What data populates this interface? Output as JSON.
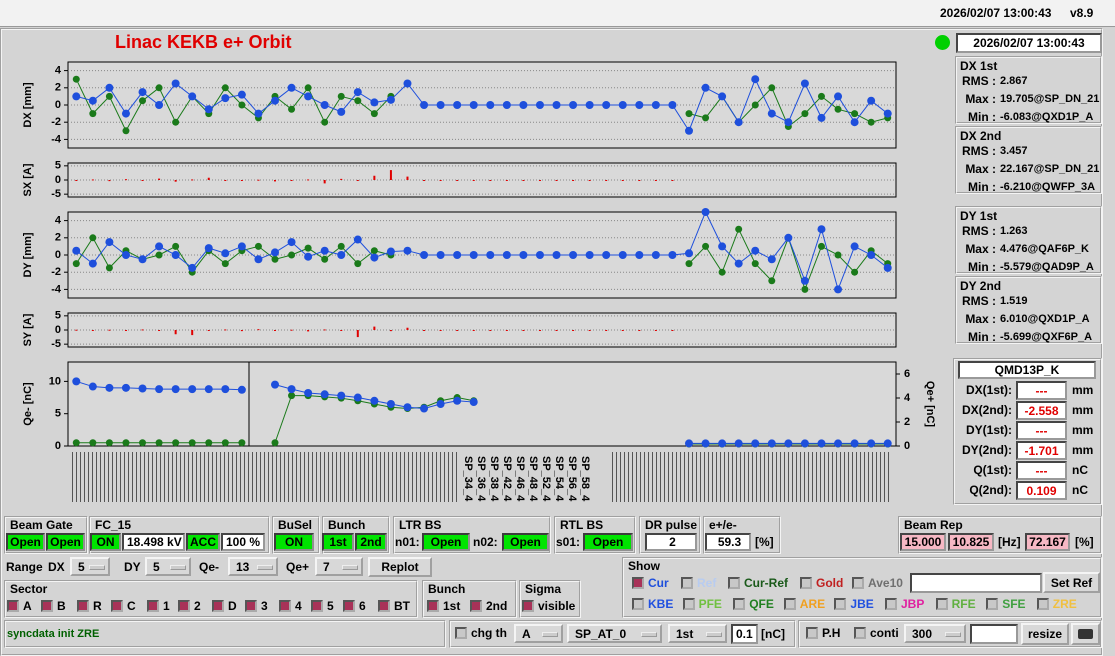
{
  "header": {
    "timestamp": "2026/02/07 13:00:43",
    "version": "v8.9"
  },
  "title": "Linac KEKB e+ Orbit",
  "clock": "2026/02/07 13:00:43",
  "plots": [
    {
      "type": "line",
      "ylabel": "DX [mm]",
      "ylim": [
        -5,
        5
      ],
      "yticks": [
        4,
        2,
        0,
        -2,
        -4
      ],
      "grid": true,
      "series": [
        {
          "color": "#1a7a1a",
          "values": [
            3,
            -1,
            1,
            -3,
            0.5,
            2,
            -2,
            1,
            -1,
            2,
            0,
            -1.5,
            1,
            -0.5,
            2,
            -2,
            1,
            0.5,
            -1,
            1,
            null,
            null,
            null,
            null,
            null,
            null,
            null,
            null,
            null,
            null,
            null,
            null,
            null,
            null,
            null,
            null,
            null,
            -1,
            -1.5,
            1,
            -2,
            0,
            2,
            -2.5,
            -1,
            1,
            -0.5,
            -1,
            -2,
            -1.5
          ]
        },
        {
          "color": "#1e4fdc",
          "values": [
            1,
            0.5,
            2,
            -1,
            1.5,
            0,
            2.5,
            1,
            -0.5,
            0.8,
            1.2,
            -1,
            0.5,
            2,
            1,
            0,
            -0.8,
            1.5,
            0.3,
            0.6,
            2.5,
            0,
            0,
            0,
            0,
            0,
            0,
            0,
            0,
            0,
            0,
            0,
            0,
            0,
            0,
            0,
            0,
            -3,
            2,
            1,
            -2,
            3,
            -1,
            -2,
            2.5,
            -1.5,
            1,
            -2,
            0.5,
            -1
          ]
        }
      ]
    },
    {
      "type": "bar",
      "ylabel": "SX [A]",
      "ylim": [
        -6,
        6
      ],
      "yticks": [
        5,
        0,
        -5
      ],
      "grid": true,
      "series": [
        {
          "color": "#e00000",
          "values": [
            -0.3,
            0.2,
            -0.4,
            0.3,
            -0.2,
            0.5,
            -0.6,
            0.2,
            0.8,
            -0.3,
            -0.2,
            0.1,
            -0.5,
            -0.3,
            0.2,
            -1.2,
            0.4,
            -0.3,
            1.5,
            3.5,
            1.2,
            0,
            0,
            0,
            0,
            0,
            0,
            0,
            0,
            0,
            0,
            0,
            0,
            0,
            0,
            0,
            0,
            null,
            null,
            null,
            null,
            null,
            null,
            null,
            null,
            null,
            null,
            null,
            null,
            null
          ]
        }
      ]
    },
    {
      "type": "line",
      "ylabel": "DY [mm]",
      "ylim": [
        -5,
        5
      ],
      "yticks": [
        4,
        2,
        0,
        -2,
        -4
      ],
      "grid": true,
      "series": [
        {
          "color": "#1a7a1a",
          "values": [
            -1,
            2,
            -1.5,
            0.5,
            -0.5,
            0,
            1,
            -2,
            0.5,
            -1,
            0.5,
            1,
            -0.5,
            0,
            0.8,
            -0.5,
            1,
            -1,
            0.5,
            0,
            null,
            null,
            null,
            null,
            null,
            null,
            null,
            null,
            null,
            null,
            null,
            null,
            null,
            null,
            null,
            null,
            null,
            -1,
            1,
            -2,
            3,
            -1,
            -3,
            2,
            -4,
            1,
            0,
            -2,
            0.5,
            -1
          ]
        },
        {
          "color": "#1e4fdc",
          "values": [
            0.5,
            -1,
            1.5,
            0,
            -0.5,
            1,
            0,
            -1.5,
            0.8,
            0.2,
            1,
            -0.5,
            0.3,
            1.5,
            -0.2,
            0.5,
            0,
            1.8,
            -0.3,
            0.4,
            0.5,
            0,
            0,
            0,
            0,
            0,
            0,
            0,
            0,
            0,
            0,
            0,
            0,
            0,
            0,
            0,
            0,
            0.2,
            5,
            1,
            -1,
            0.5,
            -0.5,
            2,
            -3,
            3,
            -4,
            1,
            0,
            -1.5
          ]
        }
      ]
    },
    {
      "type": "bar",
      "ylabel": "SY [A]",
      "ylim": [
        -6,
        6
      ],
      "yticks": [
        5,
        0,
        -5
      ],
      "grid": true,
      "series": [
        {
          "color": "#e00000",
          "values": [
            0.1,
            -0.2,
            0.1,
            -0.3,
            0.2,
            -0.1,
            -1.5,
            -1.8,
            -0.3,
            0.2,
            -0.4,
            0.3,
            -0.2,
            0.1,
            -0.5,
            0.2,
            -0.3,
            -2.5,
            1.2,
            -0.4,
            0.8,
            0,
            0,
            0,
            0,
            0,
            0,
            0,
            0,
            0,
            0,
            0,
            0,
            0,
            0,
            0,
            0,
            null,
            null,
            null,
            null,
            null,
            null,
            null,
            null,
            null,
            null,
            null,
            null,
            null
          ]
        }
      ]
    },
    {
      "type": "line",
      "ylabel": "Qe- [nC]",
      "ylim": [
        0,
        13
      ],
      "yticks": [
        10,
        5,
        0
      ],
      "y2label": "Qe+ [nC]",
      "y2lim": [
        0,
        7
      ],
      "y2ticks": [
        6,
        4,
        2,
        0
      ],
      "grid": false,
      "xlabels": [
        "SP_34_4",
        "SP_36_4",
        "SP_38_4",
        "SP_42_4",
        "SP_46_4",
        "SP_48_4",
        "SP_52_4",
        "SP_54_4",
        "SP_56_4",
        "SP_58_4"
      ],
      "series": [
        {
          "color": "#1a7a1a",
          "values": [
            0.5,
            0.5,
            0.5,
            0.5,
            0.5,
            0.5,
            0.5,
            0.5,
            0.5,
            0.5,
            0.5,
            null,
            0.5,
            7.8,
            7.8,
            7.6,
            7.4,
            7,
            6.5,
            6,
            5.8,
            6,
            7,
            7.5,
            7,
            null,
            null,
            null,
            null,
            null,
            null,
            null,
            null,
            null,
            null,
            null,
            null,
            0.3,
            0.3,
            0.3,
            0.3,
            0.3,
            0.3,
            0.3,
            0.3,
            0.3,
            0.3,
            0.3,
            0.3,
            0.3
          ]
        },
        {
          "color": "#1e4fdc",
          "values": [
            10,
            9.2,
            9,
            9,
            8.9,
            8.8,
            8.8,
            8.8,
            8.8,
            8.8,
            8.7,
            null,
            9.5,
            8.8,
            8.2,
            8,
            7.8,
            7.5,
            7,
            6.5,
            6,
            5.8,
            6.5,
            7,
            6.8,
            null,
            null,
            null,
            null,
            null,
            null,
            null,
            null,
            null,
            null,
            null,
            null,
            0.4,
            0.4,
            0.4,
            0.4,
            0.4,
            0.4,
            0.4,
            0.4,
            0.4,
            0.4,
            0.4,
            0.4,
            0.4
          ]
        }
      ]
    }
  ],
  "stats": [
    {
      "title": "DX 1st",
      "rms_label": "RMS :",
      "rms": 2.867,
      "max_label": "Max :",
      "max": "19.705@SP_DN_21",
      "min_label": "Min :",
      "min": "-6.083@QXD1P_A"
    },
    {
      "title": "DX 2nd",
      "rms_label": "RMS :",
      "rms": 3.457,
      "max_label": "Max :",
      "max": "22.167@SP_DN_21",
      "min_label": "Min :",
      "min": "-6.210@QWFP_3A"
    },
    {
      "title": "DY 1st",
      "rms_label": "RMS :",
      "rms": 1.263,
      "max_label": "Max :",
      "max": "4.476@QAF6P_K",
      "min_label": "Min :",
      "min": "-5.579@QAD9P_A"
    },
    {
      "title": "DY 2nd",
      "rms_label": "RMS :",
      "rms": 1.519,
      "max_label": "Max :",
      "max": "6.010@QXD1P_A",
      "min_label": "Min :",
      "min": "-5.699@QXF6P_A"
    }
  ],
  "detail": {
    "title": "QMD13P_K",
    "rows": [
      {
        "label": "DX(1st):",
        "value": "---",
        "unit": "mm"
      },
      {
        "label": "DX(2nd):",
        "value": -2.558,
        "unit": "mm"
      },
      {
        "label": "DY(1st):",
        "value": "---",
        "unit": "mm"
      },
      {
        "label": "DY(2nd):",
        "value": -1.701,
        "unit": "mm"
      },
      {
        "label": "Q(1st):",
        "value": "---",
        "unit": "nC"
      },
      {
        "label": "Q(2nd):",
        "value": 0.109,
        "unit": "nC"
      }
    ]
  },
  "controls": {
    "beam_gate": {
      "label": "Beam Gate",
      "buttons": [
        "Open",
        "Open"
      ]
    },
    "fc15": {
      "label": "FC_15",
      "state": "ON",
      "voltage": "18.498 kV",
      "mode": "ACC",
      "percent": "100 %"
    },
    "busel": {
      "label": "BuSel",
      "state": "ON"
    },
    "bunch": {
      "label": "Bunch",
      "buttons": [
        "1st",
        "2nd"
      ]
    },
    "ltr_bs": {
      "label": "LTR BS",
      "n01": "n01:",
      "n01_state": "Open",
      "n02": "n02:",
      "n02_state": "Open"
    },
    "rtl_bs": {
      "label": "RTL BS",
      "s01": "s01:",
      "s01_state": "Open"
    },
    "dr_pulse": {
      "label": "DR pulse",
      "value": 2
    },
    "ratio": {
      "label": "e+/e-",
      "value": 59.3,
      "unit": "[%]"
    },
    "beam_rep": {
      "label": "Beam Rep",
      "values": [
        "15.000",
        "10.825"
      ],
      "unit": "[Hz]",
      "percent": "72.167",
      "percent_unit": "[%]"
    }
  },
  "range": {
    "label": "Range",
    "fields": [
      {
        "label": "DX",
        "value": 5
      },
      {
        "label": "DY",
        "value": 5
      },
      {
        "label": "Qe-",
        "value": 13
      },
      {
        "label": "Qe+",
        "value": 7
      }
    ],
    "button": "Replot"
  },
  "show": {
    "label": "Show",
    "row1": [
      {
        "text": "Cur",
        "checked": true,
        "color": "#1e4fdc"
      },
      {
        "text": "Ref",
        "checked": false,
        "color": "#b8ccf0"
      },
      {
        "text": "Cur-Ref",
        "checked": false,
        "color": "#1a5a1a"
      },
      {
        "text": "Gold",
        "checked": false,
        "color": "#c02020"
      },
      {
        "text": "Ave10",
        "checked": false,
        "color": "#707070"
      }
    ],
    "button": "Set Ref",
    "row2": [
      {
        "text": "KBE",
        "checked": false,
        "color": "#2050e0"
      },
      {
        "text": "PFE",
        "checked": false,
        "color": "#70c040"
      },
      {
        "text": "QFE",
        "checked": false,
        "color": "#208020"
      },
      {
        "text": "ARE",
        "checked": false,
        "color": "#f0a020"
      },
      {
        "text": "JBE",
        "checked": false,
        "color": "#2050e0"
      },
      {
        "text": "JBP",
        "checked": false,
        "color": "#e020a0"
      },
      {
        "text": "RFE",
        "checked": false,
        "color": "#60b040"
      },
      {
        "text": "SFE",
        "checked": false,
        "color": "#40a040"
      },
      {
        "text": "ZRE",
        "checked": false,
        "color": "#f0c040"
      }
    ]
  },
  "sector": {
    "label": "Sector",
    "items": [
      {
        "text": "A",
        "checked": true
      },
      {
        "text": "B",
        "checked": true
      },
      {
        "text": "R",
        "checked": true
      },
      {
        "text": "C",
        "checked": true
      },
      {
        "text": "1",
        "checked": true
      },
      {
        "text": "2",
        "checked": true
      },
      {
        "text": "D",
        "checked": true
      },
      {
        "text": "3",
        "checked": true
      },
      {
        "text": "4",
        "checked": true
      },
      {
        "text": "5",
        "checked": true
      },
      {
        "text": "6",
        "checked": true
      },
      {
        "text": "BT",
        "checked": true
      }
    ]
  },
  "bunch_sel": {
    "label": "Bunch",
    "items": [
      {
        "text": "1st",
        "checked": true
      },
      {
        "text": "2nd",
        "checked": true
      }
    ]
  },
  "sigma": {
    "label": "Sigma",
    "items": [
      {
        "text": "visible",
        "checked": true
      }
    ]
  },
  "status": "syncdata init ZRE",
  "bottom": {
    "chg_th": {
      "text": "chg th",
      "checked": false
    },
    "chg_sel": "A",
    "sp": "SP_AT_0",
    "bunch": "1st",
    "threshold": 0.1,
    "unit": "[nC]",
    "ph": {
      "text": "P.H",
      "checked": false
    },
    "conti": {
      "text": "conti",
      "checked": false
    },
    "count": 300,
    "resize": "resize"
  }
}
